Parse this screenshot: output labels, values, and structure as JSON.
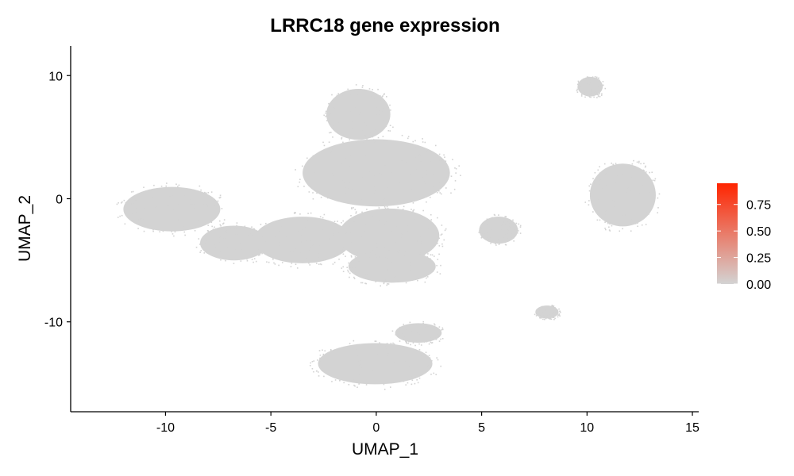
{
  "chart_data": {
    "type": "scatter",
    "title": "LRRC18 gene expression",
    "xlabel": "UMAP_1",
    "ylabel": "UMAP_2",
    "xlim": [
      -14.5,
      15.3
    ],
    "ylim": [
      -17.3,
      12.4
    ],
    "x_ticks": [
      -10,
      -5,
      0,
      5,
      10,
      15
    ],
    "y_ticks": [
      -10,
      0,
      10
    ],
    "x_tick_labels": [
      "-10",
      "-5",
      "0",
      "5",
      "10",
      "15"
    ],
    "y_tick_labels": [
      "-10",
      "0",
      "10"
    ],
    "point_color": "#d3d3d3",
    "grid": false,
    "legend": {
      "position": "right",
      "type": "colorbar",
      "low_color": "#d3d3d3",
      "high_color": "#ff2400",
      "range": [
        0,
        0.95
      ],
      "ticks": [
        0.0,
        0.25,
        0.5,
        0.75
      ],
      "tick_labels": [
        "0.00",
        "0.25",
        "0.50",
        "0.75"
      ]
    },
    "clusters": [
      {
        "x": [
          -12.2,
          -7.2
        ],
        "y": [
          -2.9,
          1.2
        ],
        "expression": 0
      },
      {
        "x": [
          -8.5,
          -5.0
        ],
        "y": [
          -5.2,
          -2.0
        ],
        "expression": 0
      },
      {
        "x": [
          -6.0,
          -1.0
        ],
        "y": [
          -5.5,
          -1.2
        ],
        "expression": 0
      },
      {
        "x": [
          -3.8,
          3.8
        ],
        "y": [
          -1.0,
          5.2
        ],
        "expression": 0
      },
      {
        "x": [
          -2.5,
          0.8
        ],
        "y": [
          4.5,
          9.2
        ],
        "expression": 0
      },
      {
        "x": [
          -2.0,
          3.2
        ],
        "y": [
          -5.5,
          -0.5
        ],
        "expression": 0
      },
      {
        "x": [
          -1.5,
          3.0
        ],
        "y": [
          -7.0,
          -4.0
        ],
        "expression": 0
      },
      {
        "x": [
          10.0,
          13.4
        ],
        "y": [
          -2.6,
          3.2
        ],
        "expression": 0
      },
      {
        "x": [
          9.5,
          10.8
        ],
        "y": [
          8.2,
          10.0
        ],
        "expression": 0
      },
      {
        "x": [
          4.8,
          6.8
        ],
        "y": [
          -3.8,
          -1.3
        ],
        "expression": 0
      },
      {
        "x": [
          7.5,
          8.7
        ],
        "y": [
          -9.8,
          -8.6
        ],
        "expression": 0
      },
      {
        "x": [
          -3.0,
          2.9
        ],
        "y": [
          -15.3,
          -11.5
        ],
        "expression": 0
      },
      {
        "x": [
          0.8,
          3.2
        ],
        "y": [
          -11.8,
          -10.0
        ],
        "expression": 0
      }
    ]
  }
}
